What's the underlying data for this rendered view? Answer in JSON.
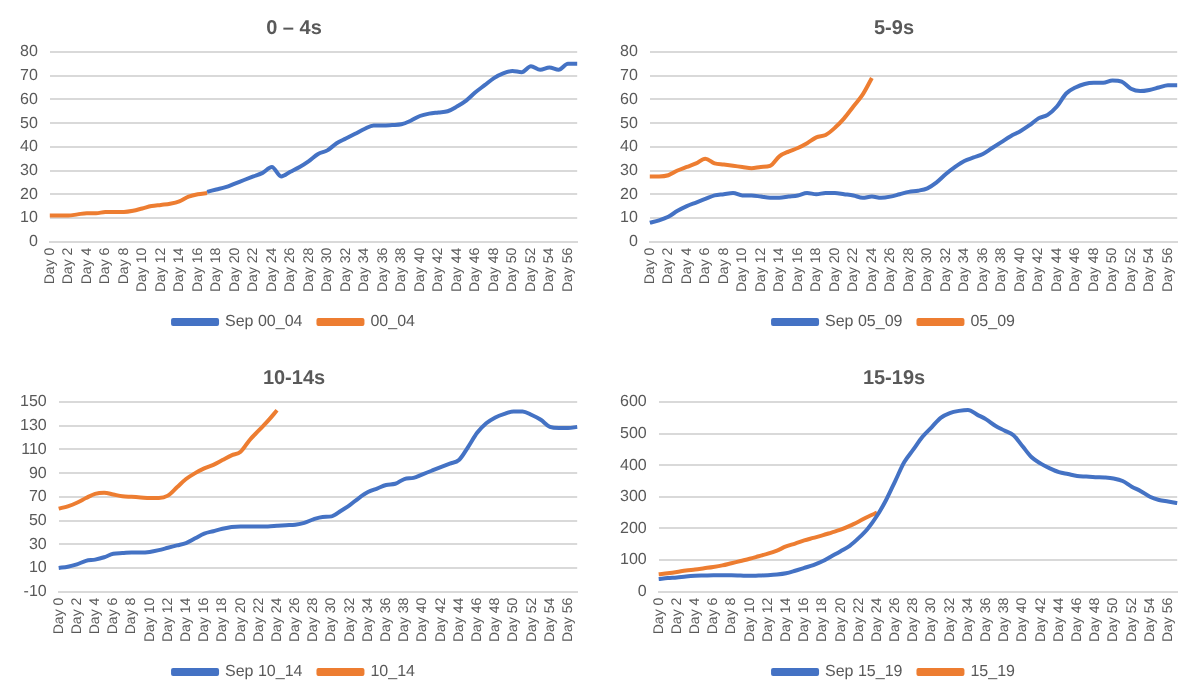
{
  "chart_data": [
    {
      "type": "line",
      "title": "0 – 4s",
      "categories": [
        "Day 0",
        null,
        "Day 2",
        null,
        "Day 4",
        null,
        "Day 6",
        null,
        "Day 8",
        null,
        "Day 10",
        null,
        "Day 12",
        null,
        "Day 14",
        null,
        "Day 16",
        null,
        "Day 18",
        null,
        "Day 20",
        null,
        "Day 22",
        null,
        "Day 24",
        null,
        "Day 26",
        null,
        "Day 28",
        null,
        "Day 30",
        null,
        "Day 32",
        null,
        "Day 34",
        null,
        "Day 36",
        null,
        "Day 38",
        null,
        "Day 40",
        null,
        "Day 42",
        null,
        "Day 44",
        null,
        "Day 46",
        null,
        "Day 48",
        null,
        "Day 50",
        null,
        "Day 52",
        null,
        "Day 54",
        null,
        "Day 56",
        null
      ],
      "series": [
        {
          "name": "Sep 00_04",
          "color": "#4472c4",
          "values": [
            null,
            null,
            null,
            null,
            null,
            null,
            null,
            null,
            null,
            null,
            null,
            null,
            null,
            null,
            null,
            null,
            null,
            21,
            22,
            23,
            24.5,
            26,
            27.5,
            29,
            31.5,
            27.5,
            29.5,
            31.5,
            34,
            37,
            38.5,
            41.5,
            43.5,
            45.5,
            47.5,
            49,
            49,
            49.2,
            49.5,
            51,
            53,
            54,
            54.5,
            55,
            57,
            59.5,
            63,
            66,
            69,
            71,
            72,
            71.5,
            74,
            72.5,
            73.5,
            72.5,
            75,
            75
          ]
        },
        {
          "name": "00_04",
          "color": "#ed7d31",
          "values": [
            11,
            11,
            11,
            11.5,
            12,
            12,
            12.5,
            12.5,
            12.5,
            13,
            14,
            15,
            15.5,
            16,
            17,
            19,
            20,
            20.5,
            null,
            null,
            null,
            null,
            null,
            null,
            null,
            null,
            null,
            null,
            null,
            null,
            null,
            null,
            null,
            null,
            null,
            null,
            null,
            null,
            null,
            null,
            null,
            null,
            null,
            null,
            null,
            null,
            null,
            null,
            null,
            null,
            null,
            null,
            null,
            null,
            null,
            null,
            null,
            null
          ]
        }
      ],
      "ylim": [
        0,
        80
      ],
      "yticks": [
        0,
        10,
        20,
        30,
        40,
        50,
        60,
        70,
        80
      ],
      "grid": "y",
      "legend": "bottom",
      "marker": "none",
      "line_style": "solid"
    },
    {
      "type": "line",
      "title": "5-9s",
      "categories": [
        "Day 0",
        null,
        "Day 2",
        null,
        "Day 4",
        null,
        "Day 6",
        null,
        "Day 8",
        null,
        "Day 10",
        null,
        "Day 12",
        null,
        "Day 14",
        null,
        "Day 16",
        null,
        "Day 18",
        null,
        "Day 20",
        null,
        "Day 22",
        null,
        "Day 24",
        null,
        "Day 26",
        null,
        "Day 28",
        null,
        "Day 30",
        null,
        "Day 32",
        null,
        "Day 34",
        null,
        "Day 36",
        null,
        "Day 38",
        null,
        "Day 40",
        null,
        "Day 42",
        null,
        "Day 44",
        null,
        "Day 46",
        null,
        "Day 48",
        null,
        "Day 50",
        null,
        "Day 52",
        null,
        "Day 54",
        null,
        "Day 56",
        null
      ],
      "series": [
        {
          "name": "Sep 05_09",
          "color": "#4472c4",
          "values": [
            8,
            9,
            10.5,
            13,
            15,
            16.5,
            18,
            19.5,
            20,
            20.5,
            19.5,
            19.5,
            19,
            18.5,
            18.5,
            19,
            19.5,
            20.5,
            20,
            20.5,
            20.5,
            20,
            19.5,
            18.5,
            19,
            18.5,
            19,
            20,
            21,
            21.5,
            22.5,
            25,
            28.5,
            31.5,
            34,
            35.5,
            37,
            39.5,
            42,
            44.5,
            46.5,
            49,
            52,
            53.5,
            57,
            62.5,
            65,
            66.5,
            67,
            67,
            68,
            67.5,
            64.5,
            63.5,
            64,
            65,
            66,
            66
          ]
        },
        {
          "name": "05_09",
          "color": "#ed7d31",
          "values": [
            27.5,
            27.5,
            28,
            30,
            31.5,
            33,
            35,
            33,
            32.5,
            32,
            31.5,
            31,
            31.5,
            32,
            36,
            38,
            39.5,
            41.5,
            44,
            45,
            48,
            52,
            57,
            62,
            69,
            null,
            null,
            null,
            null,
            null,
            null,
            null,
            null,
            null,
            null,
            null,
            null,
            null,
            null,
            null,
            null,
            null,
            null,
            null,
            null,
            null,
            null,
            null,
            null,
            null,
            null,
            null,
            null,
            null,
            null,
            null,
            null,
            null
          ]
        }
      ],
      "ylim": [
        0,
        80
      ],
      "yticks": [
        0,
        10,
        20,
        30,
        40,
        50,
        60,
        70,
        80
      ],
      "grid": "y",
      "legend": "bottom",
      "marker": "none",
      "line_style": "solid"
    },
    {
      "type": "line",
      "title": "10-14s",
      "categories": [
        "Day 0",
        null,
        "Day 2",
        null,
        "Day 4",
        null,
        "Day 6",
        null,
        "Day 8",
        null,
        "Day 10",
        null,
        "Day 12",
        null,
        "Day 14",
        null,
        "Day 16",
        null,
        "Day 18",
        null,
        "Day 20",
        null,
        "Day 22",
        null,
        "Day 24",
        null,
        "Day 26",
        null,
        "Day 28",
        null,
        "Day 30",
        null,
        "Day 32",
        null,
        "Day 34",
        null,
        "Day 36",
        null,
        "Day 38",
        null,
        "Day 40",
        null,
        "Day 42",
        null,
        "Day 44",
        null,
        "Day 46",
        null,
        "Day 48",
        null,
        "Day 50",
        null,
        "Day 52",
        null,
        "Day 54",
        null,
        "Day 56",
        null
      ],
      "series": [
        {
          "name": "Sep 10_14",
          "color": "#4472c4",
          "values": [
            10,
            11,
            13,
            16,
            17,
            19,
            22,
            22.5,
            23,
            23,
            23.5,
            25,
            27,
            29,
            31,
            35,
            39,
            41,
            43,
            44.5,
            45,
            45,
            45,
            45,
            45.5,
            46,
            46.5,
            48,
            51,
            53,
            53.5,
            58,
            63,
            69,
            74,
            77,
            80,
            81,
            85,
            86,
            89,
            92,
            95,
            98,
            101,
            112,
            124,
            132,
            137,
            140,
            142,
            142,
            139,
            135,
            129,
            128,
            128,
            129
          ]
        },
        {
          "name": "10_14",
          "color": "#ed7d31",
          "values": [
            60,
            62,
            65,
            69,
            72.5,
            73.5,
            72,
            70.5,
            70,
            69.5,
            69,
            69,
            71,
            78,
            85,
            90,
            94,
            97,
            101,
            105,
            108,
            118,
            126,
            134,
            143,
            null,
            null,
            null,
            null,
            null,
            null,
            null,
            null,
            null,
            null,
            null,
            null,
            null,
            null,
            null,
            null,
            null,
            null,
            null,
            null,
            null,
            null,
            null,
            null,
            null,
            null,
            null,
            null,
            null,
            null,
            null,
            null,
            null
          ]
        }
      ],
      "ylim": [
        -10,
        150
      ],
      "yticks": [
        -10,
        10,
        30,
        50,
        70,
        90,
        110,
        130,
        150
      ],
      "grid": "y",
      "legend": "bottom",
      "marker": "none",
      "line_style": "solid"
    },
    {
      "type": "line",
      "title": "15-19s",
      "categories": [
        "Day 0",
        null,
        "Day 2",
        null,
        "Day 4",
        null,
        "Day 6",
        null,
        "Day 8",
        null,
        "Day 10",
        null,
        "Day 12",
        null,
        "Day 14",
        null,
        "Day 16",
        null,
        "Day 18",
        null,
        "Day 20",
        null,
        "Day 22",
        null,
        "Day 24",
        null,
        "Day 26",
        null,
        "Day 28",
        null,
        "Day 30",
        null,
        "Day 32",
        null,
        "Day 34",
        null,
        "Day 36",
        null,
        "Day 38",
        null,
        "Day 40",
        null,
        "Day 42",
        null,
        "Day 44",
        null,
        "Day 46",
        null,
        "Day 48",
        null,
        "Day 50",
        null,
        "Day 52",
        null,
        "Day 54",
        null,
        "Day 56",
        null
      ],
      "series": [
        {
          "name": "Sep 15_19",
          "color": "#4472c4",
          "values": [
            40,
            43,
            45,
            48,
            50,
            51,
            52,
            52,
            52,
            51,
            50,
            51,
            52,
            54,
            58,
            66,
            75,
            84,
            96,
            112,
            128,
            145,
            170,
            200,
            240,
            290,
            350,
            410,
            450,
            490,
            520,
            550,
            565,
            572,
            575,
            560,
            545,
            525,
            510,
            495,
            460,
            425,
            405,
            390,
            378,
            372,
            366,
            364,
            362,
            361,
            358,
            350,
            332,
            318,
            300,
            290,
            285,
            280
          ]
        },
        {
          "name": "15_19",
          "color": "#ed7d31",
          "values": [
            55,
            58,
            62,
            67,
            70,
            74,
            78,
            83,
            90,
            97,
            104,
            112,
            120,
            130,
            143,
            152,
            162,
            170,
            178,
            187,
            196,
            208,
            222,
            237,
            250,
            null,
            null,
            null,
            null,
            null,
            null,
            null,
            null,
            null,
            null,
            null,
            null,
            null,
            null,
            null,
            null,
            null,
            null,
            null,
            null,
            null,
            null,
            null,
            null,
            null,
            null,
            null,
            null,
            null,
            null,
            null,
            null,
            null
          ]
        }
      ],
      "ylim": [
        0,
        600
      ],
      "yticks": [
        0,
        100,
        200,
        300,
        400,
        500,
        600
      ],
      "grid": "y",
      "legend": "bottom",
      "marker": "none",
      "line_style": "solid"
    }
  ]
}
